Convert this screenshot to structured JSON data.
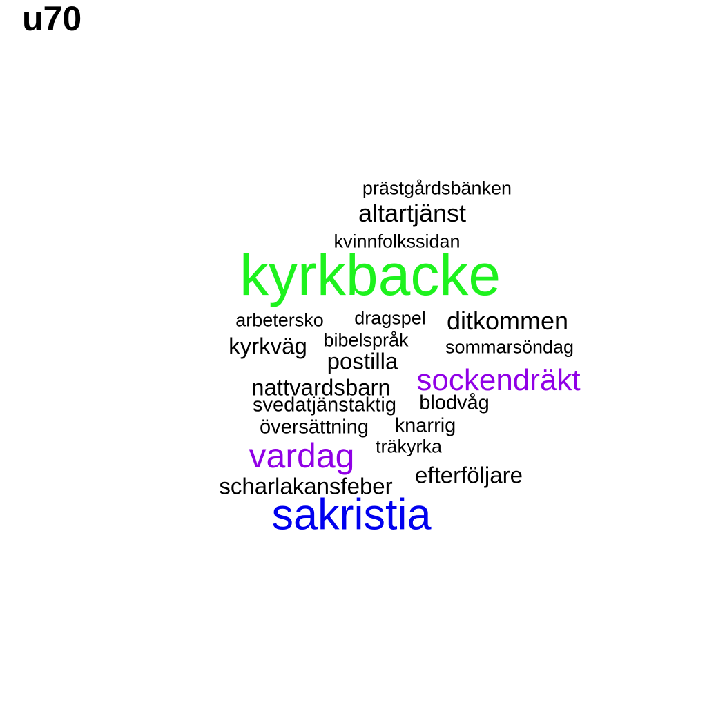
{
  "title": "u70",
  "colors": {
    "black": "#000000",
    "green": "#1ef21e",
    "purple": "#9000e6",
    "blue": "#0000ee"
  },
  "words": [
    {
      "text": "prästgårdsbänken",
      "color": "black"
    },
    {
      "text": "altartjänst",
      "color": "black"
    },
    {
      "text": "kvinnfolkssidan",
      "color": "black"
    },
    {
      "text": "kyrkbacke",
      "color": "green"
    },
    {
      "text": "arbetersko",
      "color": "black"
    },
    {
      "text": "dragspel",
      "color": "black"
    },
    {
      "text": "ditkommen",
      "color": "black"
    },
    {
      "text": "kyrkväg",
      "color": "black"
    },
    {
      "text": "bibelspråk",
      "color": "black"
    },
    {
      "text": "sommarsöndag",
      "color": "black"
    },
    {
      "text": "postilla",
      "color": "black"
    },
    {
      "text": "nattvardsbarn",
      "color": "black"
    },
    {
      "text": "sockendräkt",
      "color": "purple"
    },
    {
      "text": "svedatjänstaktig",
      "color": "black"
    },
    {
      "text": "blodvåg",
      "color": "black"
    },
    {
      "text": "översättning",
      "color": "black"
    },
    {
      "text": "knarrig",
      "color": "black"
    },
    {
      "text": "träkyrka",
      "color": "black"
    },
    {
      "text": "vardag",
      "color": "purple"
    },
    {
      "text": "efterföljare",
      "color": "black"
    },
    {
      "text": "scharlakansfeber",
      "color": "black"
    },
    {
      "text": "sakristia",
      "color": "blue"
    }
  ]
}
